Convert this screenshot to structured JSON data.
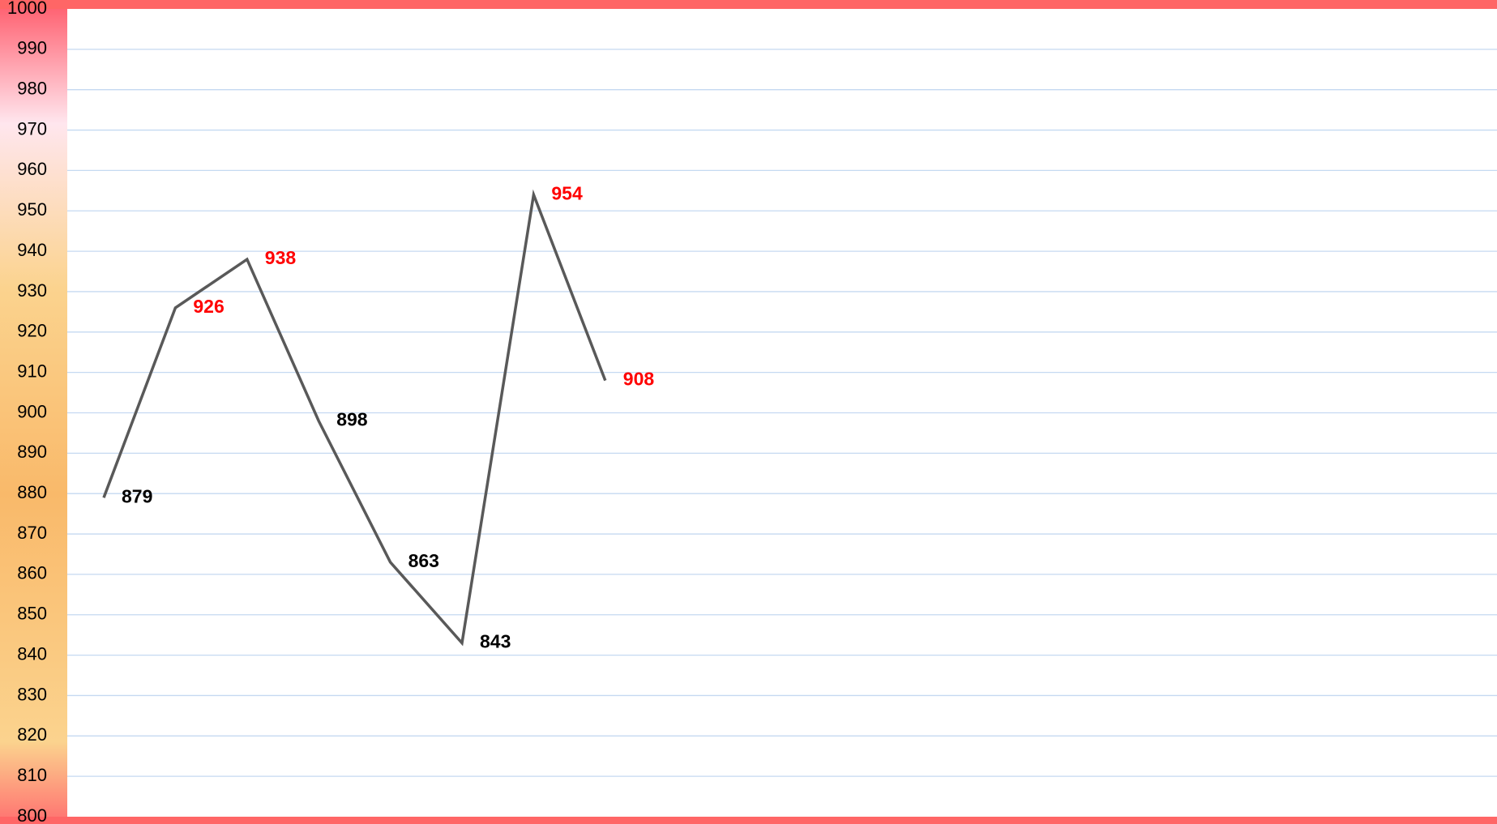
{
  "chart_data": {
    "type": "line",
    "title": "",
    "xlabel": "",
    "ylabel": "",
    "ylim": [
      800,
      1000
    ],
    "y_ticks": [
      1000,
      990,
      980,
      970,
      960,
      950,
      940,
      930,
      920,
      910,
      900,
      890,
      880,
      870,
      860,
      850,
      840,
      830,
      820,
      810,
      800
    ],
    "grid": true,
    "series": [
      {
        "values": [
          879,
          926,
          938,
          898,
          863,
          843,
          954,
          908
        ]
      }
    ],
    "data_labels": [
      {
        "text": "879",
        "color": "#000000"
      },
      {
        "text": "926",
        "color": "#ff0000"
      },
      {
        "text": "938",
        "color": "#ff0000"
      },
      {
        "text": "898",
        "color": "#000000"
      },
      {
        "text": "863",
        "color": "#000000"
      },
      {
        "text": "843",
        "color": "#000000"
      },
      {
        "text": "954",
        "color": "#ff0000"
      },
      {
        "text": "908",
        "color": "#ff0000"
      }
    ],
    "colors": {
      "line": "#595959",
      "gridline": "#c5d9f1",
      "frame": "#ff6666",
      "axis_band_top": "#ff5a6a",
      "axis_band_light": "#ffe6ee",
      "axis_band_mid": "#f9b96a",
      "axis_band_low": "#fbd38e",
      "axis_band_bottom": "#ff7070"
    }
  }
}
